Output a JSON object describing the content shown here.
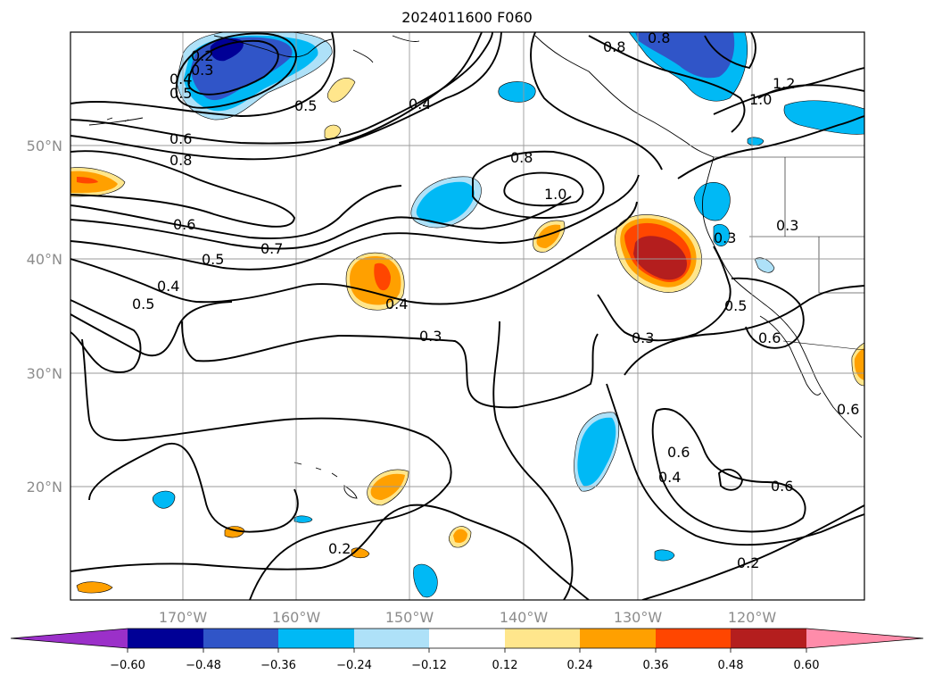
{
  "title": "2024011600 F060",
  "map": {
    "lon_labels": [
      "170°W",
      "160°W",
      "150°W",
      "140°W",
      "130°W",
      "120°W"
    ],
    "lat_labels": [
      "50°N",
      "40°N",
      "30°N",
      "20°N"
    ],
    "grid": true
  },
  "contour_labels": [
    "0.2",
    "0.3",
    "0.4",
    "0.5",
    "0.5",
    "0.6",
    "0.8",
    "0.4",
    "0.8",
    "0.8",
    "1.2",
    "1.0",
    "0.8",
    "1.0",
    "0.6",
    "0.5",
    "0.7",
    "0.5",
    "0.4",
    "0.4",
    "0.3",
    "0.3",
    "0.3",
    "0.3",
    "0.5",
    "0.6",
    "0.6",
    "0.4",
    "0.6",
    "0.2",
    "0.2",
    "0.6"
  ],
  "colorbar": {
    "ticks": [
      "−0.60",
      "−0.48",
      "−0.36",
      "−0.24",
      "−0.12",
      "0.12",
      "0.24",
      "0.36",
      "0.48",
      "0.60"
    ],
    "colors": [
      "#9b30c9",
      "#000096",
      "#3055c8",
      "#00b9f5",
      "#aee1f8",
      "#ffffff",
      "#ffe68c",
      "#ffa000",
      "#ff4600",
      "#b41e1e",
      "#ff8caa"
    ]
  }
}
